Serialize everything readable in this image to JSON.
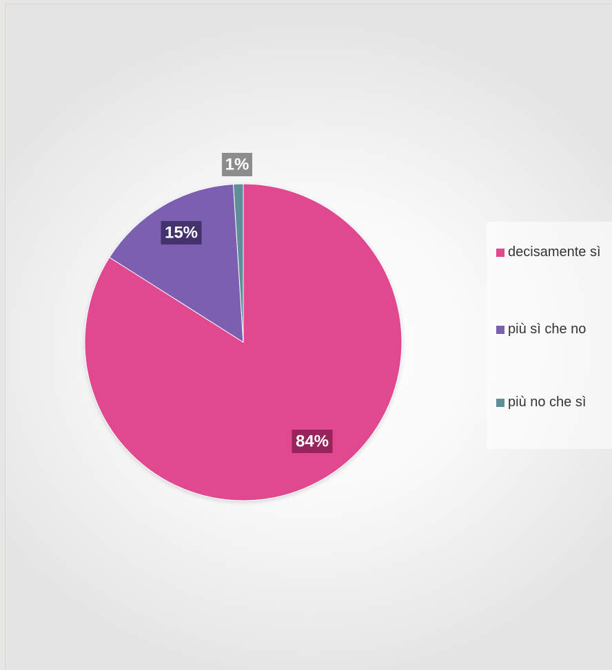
{
  "chart_data": {
    "type": "pie",
    "slices": [
      {
        "label": "decisamente sì",
        "value": 84,
        "display": "84%",
        "color": "#e0488f"
      },
      {
        "label": "più sì che no",
        "value": 15,
        "display": "15%",
        "color": "#7b5fb0"
      },
      {
        "label": "più no che sì",
        "value": 1,
        "display": "1%",
        "color": "#5f8d99"
      }
    ],
    "legend_position": "right",
    "title": ""
  }
}
